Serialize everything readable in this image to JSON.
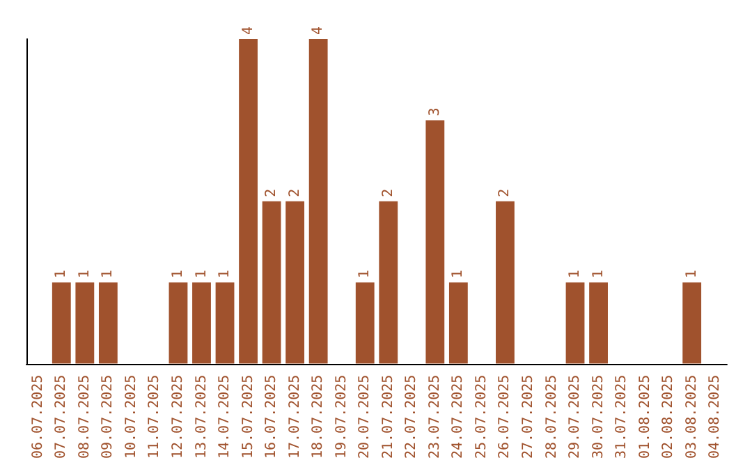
{
  "chart_data": {
    "type": "bar",
    "categories": [
      "06.07.2025",
      "07.07.2025",
      "08.07.2025",
      "09.07.2025",
      "10.07.2025",
      "11.07.2025",
      "12.07.2025",
      "13.07.2025",
      "14.07.2025",
      "15.07.2025",
      "16.07.2025",
      "17.07.2025",
      "18.07.2025",
      "19.07.2025",
      "20.07.2025",
      "21.07.2025",
      "22.07.2025",
      "23.07.2025",
      "24.07.2025",
      "25.07.2025",
      "26.07.2025",
      "27.07.2025",
      "28.07.2025",
      "29.07.2025",
      "30.07.2025",
      "31.07.2025",
      "01.08.2025",
      "02.08.2025",
      "03.08.2025",
      "04.08.2025"
    ],
    "values": [
      0,
      1,
      1,
      1,
      0,
      0,
      1,
      1,
      1,
      4,
      2,
      2,
      4,
      0,
      1,
      2,
      0,
      3,
      1,
      0,
      2,
      0,
      0,
      1,
      1,
      0,
      0,
      0,
      1,
      0
    ],
    "value_labels": [
      null,
      "1",
      "1",
      "1",
      null,
      null,
      "1",
      "1",
      "1",
      "4",
      "2",
      "2",
      "4",
      null,
      "1",
      "2",
      null,
      "3",
      "1",
      null,
      "2",
      null,
      null,
      "1",
      "1",
      null,
      null,
      null,
      "1",
      null
    ],
    "color": "#a0522d",
    "ylim": [
      0,
      4
    ],
    "grid": false,
    "tick_labels": "x"
  }
}
